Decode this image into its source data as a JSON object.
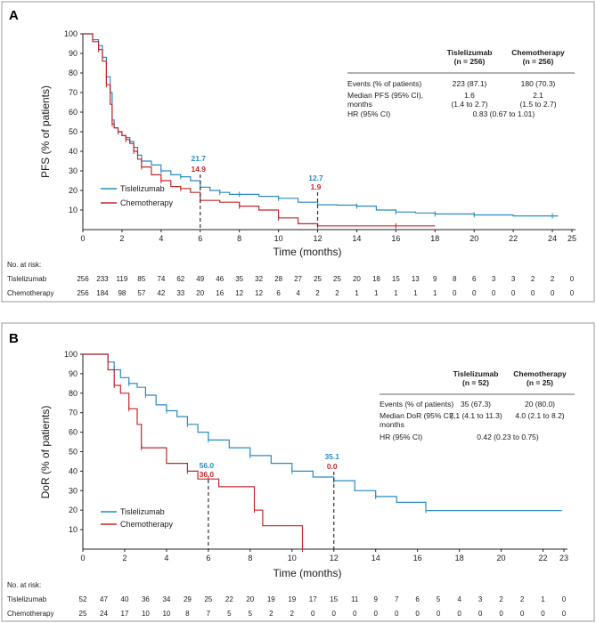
{
  "colors": {
    "tislelizumab": "#2a8bbf",
    "chemotherapy": "#c0282f",
    "axis": "#222222",
    "frame": "#999999"
  },
  "chart_data": [
    {
      "panel": "A",
      "type": "line",
      "title": "",
      "xlabel": "Time (months)",
      "ylabel": "PFS (% of patients)",
      "xlim": [
        0,
        25
      ],
      "ylim": [
        0,
        100
      ],
      "xticks": [
        "0",
        "2",
        "4",
        "6",
        "8",
        "10",
        "12",
        "14",
        "16",
        "18",
        "20",
        "22",
        "24",
        "25"
      ],
      "yticks": [
        "10",
        "20",
        "30",
        "40",
        "50",
        "60",
        "70",
        "80",
        "90",
        "100"
      ],
      "series": [
        {
          "name": "Tislelizumab",
          "x": [
            0,
            0.5,
            0.8,
            1.0,
            1.2,
            1.4,
            1.5,
            1.6,
            1.8,
            2.0,
            2.2,
            2.4,
            2.6,
            2.8,
            3.0,
            3.5,
            4.0,
            4.5,
            5.0,
            5.5,
            6.0,
            6.5,
            7.0,
            7.5,
            8.0,
            9.0,
            10.0,
            11.0,
            12.0,
            13.0,
            14.0,
            15.0,
            16.0,
            17.0,
            18.0,
            19.0,
            20.0,
            22.0,
            24.0,
            24.3
          ],
          "y": [
            100,
            97,
            94,
            88,
            78,
            70,
            56,
            52,
            50,
            48,
            47,
            45,
            42,
            38,
            35,
            33,
            30,
            28,
            27,
            25,
            21.7,
            20,
            19,
            18,
            18,
            17,
            16,
            14,
            12.7,
            12.5,
            12,
            10,
            9,
            8.5,
            8,
            8,
            7.5,
            7,
            7,
            7
          ]
        },
        {
          "name": "Chemotherapy",
          "x": [
            0,
            0.5,
            0.8,
            1.0,
            1.2,
            1.4,
            1.5,
            1.6,
            1.8,
            2.0,
            2.2,
            2.4,
            2.6,
            2.8,
            3.0,
            3.5,
            4.0,
            4.5,
            5.0,
            5.5,
            6.0,
            7.0,
            8.0,
            9.0,
            10.0,
            11.0,
            12.0,
            14.0,
            16.0,
            18.0
          ],
          "y": [
            100,
            96,
            92,
            86,
            74,
            64,
            54,
            52,
            50,
            48,
            46,
            44,
            40,
            36,
            32,
            28,
            25,
            22,
            21,
            19,
            14.9,
            14,
            12,
            10,
            6,
            3,
            1.9,
            1.9,
            1.9,
            1.9
          ]
        }
      ],
      "annotations": [
        {
          "x": 6,
          "label_tis": "21.7",
          "label_chemo": "14.9"
        },
        {
          "x": 12,
          "label_tis": "12.7",
          "label_chemo": "1.9"
        }
      ],
      "legend": [
        "Tislelizumab",
        "Chemotherapy"
      ],
      "summary_table": {
        "columns": [
          "Tislelizumab\n(n = 256)",
          "Chemotherapy\n(n = 256)"
        ],
        "rows": [
          {
            "label": "Events (% of patients)",
            "tis": "223 (87.1)",
            "chemo": "180 (70.3)"
          },
          {
            "label": "Median PFS (95% CI),\nmonths",
            "tis": "1.6\n(1.4 to 2.7)",
            "chemo": "2.1\n(1.5 to 2.7)"
          },
          {
            "label": "HR (95% CI)",
            "merged": "0.83 (0.67 to 1.01)"
          }
        ]
      },
      "at_risk": {
        "header": "No. at risk:",
        "rows": [
          {
            "label": "Tislelizumab",
            "values": [
              "256",
              "233",
              "119",
              "85",
              "74",
              "62",
              "49",
              "46",
              "35",
              "32",
              "28",
              "27",
              "25",
              "25",
              "20",
              "18",
              "15",
              "13",
              "9",
              "8",
              "6",
              "3",
              "3",
              "2",
              "2",
              "0"
            ]
          },
          {
            "label": "Chemotherapy",
            "values": [
              "256",
              "184",
              "98",
              "57",
              "42",
              "33",
              "20",
              "16",
              "12",
              "12",
              "6",
              "4",
              "2",
              "2",
              "1",
              "1",
              "1",
              "1",
              "1",
              "0",
              "0",
              "0",
              "0",
              "0",
              "0",
              "0"
            ]
          }
        ]
      }
    },
    {
      "panel": "B",
      "type": "line",
      "title": "",
      "xlabel": "Time (months)",
      "ylabel": "DoR (% of patients)",
      "xlim": [
        0,
        23
      ],
      "ylim": [
        0,
        100
      ],
      "xticks": [
        "0",
        "2",
        "4",
        "6",
        "8",
        "10",
        "12",
        "14",
        "16",
        "18",
        "20",
        "22",
        "23"
      ],
      "yticks": [
        "10",
        "20",
        "30",
        "40",
        "50",
        "60",
        "70",
        "80",
        "90",
        "100"
      ],
      "series": [
        {
          "name": "Tislelizumab",
          "x": [
            0,
            1.2,
            1.5,
            1.8,
            2.2,
            2.6,
            3.0,
            3.5,
            4.0,
            4.5,
            5.0,
            5.5,
            6.0,
            7.0,
            8.0,
            9.0,
            10.0,
            11.0,
            12.0,
            13.0,
            14.0,
            15.0,
            16.4,
            22.9
          ],
          "y": [
            100,
            96,
            92,
            88,
            85,
            83,
            79,
            74,
            71,
            68,
            64,
            60,
            56,
            52,
            48,
            44,
            40,
            37,
            35.1,
            30,
            27,
            24,
            19.8,
            19.8
          ]
        },
        {
          "name": "Chemotherapy",
          "x": [
            0,
            1.2,
            1.5,
            1.8,
            2.2,
            2.6,
            2.8,
            4.0,
            5.0,
            5.5,
            6.0,
            6.5,
            8.2,
            8.6,
            10.5
          ],
          "y": [
            100,
            92,
            84,
            80,
            72,
            64,
            52,
            44,
            40,
            36,
            36,
            32,
            20,
            12,
            0
          ]
        }
      ],
      "annotations": [
        {
          "x": 6,
          "label_tis": "56.0",
          "label_chemo": "36.0"
        },
        {
          "x": 12,
          "label_tis": "35.1",
          "label_chemo": "0.0"
        }
      ],
      "legend": [
        "Tislelizumab",
        "Chemotherapy"
      ],
      "summary_table": {
        "columns": [
          "Tislelizumab\n(n = 52)",
          "Chemotherapy\n(n = 25)"
        ],
        "rows": [
          {
            "label": "Events (% of patients)",
            "tis": "35 (67.3)",
            "chemo": "20 (80.0)"
          },
          {
            "label": "Median DoR (95% CI),\nmonths",
            "tis": "7.1 (4.1 to 11.3)",
            "chemo": "4.0 (2.1 to 8.2)"
          },
          {
            "label": "HR (95% CI)",
            "merged": "0.42 (0.23 to 0.75)"
          }
        ]
      },
      "at_risk": {
        "header": "No. at risk:",
        "rows": [
          {
            "label": "Tislelizumab",
            "values": [
              "52",
              "47",
              "40",
              "36",
              "34",
              "29",
              "25",
              "22",
              "20",
              "19",
              "19",
              "17",
              "15",
              "11",
              "9",
              "7",
              "6",
              "5",
              "4",
              "3",
              "2",
              "2",
              "1",
              "0"
            ]
          },
          {
            "label": "Chemotherapy",
            "values": [
              "25",
              "24",
              "17",
              "10",
              "10",
              "8",
              "7",
              "5",
              "5",
              "2",
              "2",
              "0",
              "0",
              "0",
              "0",
              "0",
              "0",
              "0",
              "0",
              "0",
              "0",
              "0",
              "0",
              "0"
            ]
          }
        ]
      }
    }
  ]
}
